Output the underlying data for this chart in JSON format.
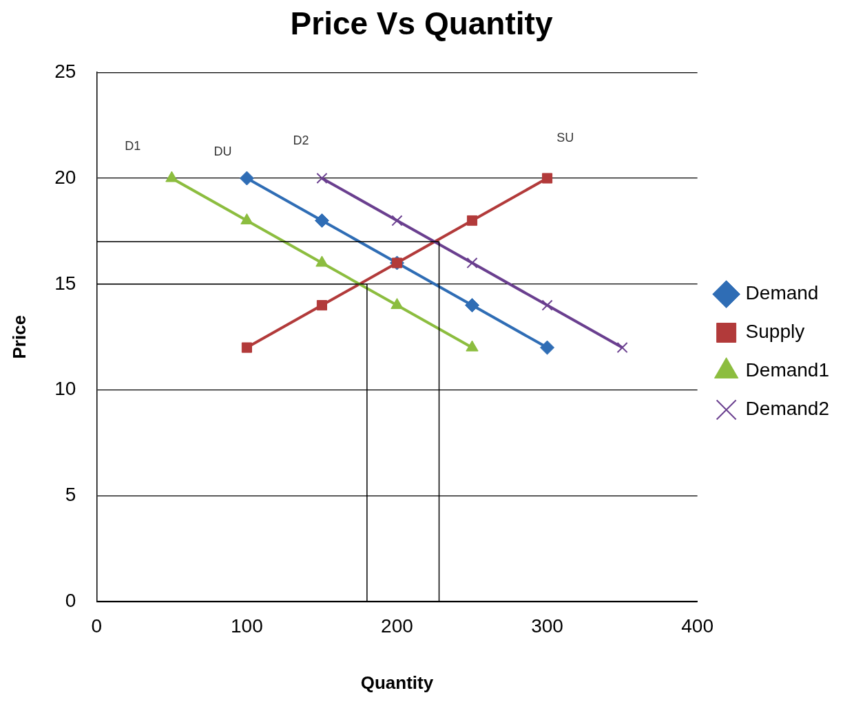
{
  "chart_data": {
    "type": "line",
    "title": "Price Vs Quantity",
    "xlabel": "Quantity",
    "ylabel": "Price",
    "xlim": [
      0,
      400
    ],
    "xticks": [
      0,
      100,
      200,
      300,
      400
    ],
    "ylim": [
      0,
      25
    ],
    "yticks": [
      0,
      5,
      10,
      15,
      20,
      25
    ],
    "grid": "y",
    "legend": "right",
    "series": [
      {
        "name": "Demand",
        "color": "#2f6db5",
        "marker": "diamond",
        "x": [
          100,
          150,
          200,
          250,
          300
        ],
        "values": [
          20,
          18,
          16,
          14,
          12
        ]
      },
      {
        "name": "Supply",
        "color": "#b23a3a",
        "marker": "square",
        "x": [
          100,
          150,
          200,
          250,
          300
        ],
        "values": [
          12,
          14,
          16,
          18,
          20
        ]
      },
      {
        "name": "Demand1",
        "color": "#8cbd3f",
        "marker": "triangle",
        "x": [
          50,
          100,
          150,
          200,
          250
        ],
        "values": [
          20,
          18,
          16,
          14,
          12
        ]
      },
      {
        "name": "Demand2",
        "color": "#6a3f8f",
        "marker": "cross",
        "x": [
          150,
          200,
          250,
          300,
          350
        ],
        "values": [
          20,
          18,
          16,
          14,
          12
        ]
      },
      {
        "color": "#000000",
        "marker": "none",
        "x": [
          0,
          180,
          180
        ],
        "values": [
          15,
          15,
          0
        ]
      },
      {
        "color": "#000000",
        "marker": "none",
        "x": [
          0,
          228,
          228
        ],
        "values": [
          17,
          17,
          0
        ]
      }
    ],
    "annotations": [
      "D1",
      "DU",
      "D2",
      "SU"
    ]
  }
}
